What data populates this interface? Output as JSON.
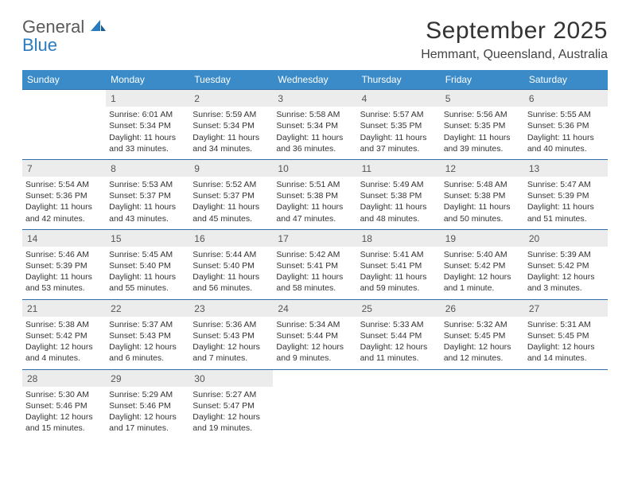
{
  "brand": {
    "line1": "General",
    "line2": "Blue"
  },
  "title": "September 2025",
  "location": "Hemmant, Queensland, Australia",
  "colors": {
    "header_bg": "#3b8bc8",
    "header_text": "#ffffff",
    "daynum_bg": "#ececec",
    "rule": "#2f6fa7",
    "text": "#333333",
    "brand_gray": "#5a5a5a",
    "brand_blue": "#2b7bbf"
  },
  "typography": {
    "title_fontsize": 30,
    "location_fontsize": 16,
    "header_fontsize": 12,
    "cell_fontsize": 10.5
  },
  "day_headers": [
    "Sunday",
    "Monday",
    "Tuesday",
    "Wednesday",
    "Thursday",
    "Friday",
    "Saturday"
  ],
  "weeks": [
    [
      null,
      {
        "n": "1",
        "sunrise": "6:01 AM",
        "sunset": "5:34 PM",
        "daylight": "11 hours and 33 minutes."
      },
      {
        "n": "2",
        "sunrise": "5:59 AM",
        "sunset": "5:34 PM",
        "daylight": "11 hours and 34 minutes."
      },
      {
        "n": "3",
        "sunrise": "5:58 AM",
        "sunset": "5:34 PM",
        "daylight": "11 hours and 36 minutes."
      },
      {
        "n": "4",
        "sunrise": "5:57 AM",
        "sunset": "5:35 PM",
        "daylight": "11 hours and 37 minutes."
      },
      {
        "n": "5",
        "sunrise": "5:56 AM",
        "sunset": "5:35 PM",
        "daylight": "11 hours and 39 minutes."
      },
      {
        "n": "6",
        "sunrise": "5:55 AM",
        "sunset": "5:36 PM",
        "daylight": "11 hours and 40 minutes."
      }
    ],
    [
      {
        "n": "7",
        "sunrise": "5:54 AM",
        "sunset": "5:36 PM",
        "daylight": "11 hours and 42 minutes."
      },
      {
        "n": "8",
        "sunrise": "5:53 AM",
        "sunset": "5:37 PM",
        "daylight": "11 hours and 43 minutes."
      },
      {
        "n": "9",
        "sunrise": "5:52 AM",
        "sunset": "5:37 PM",
        "daylight": "11 hours and 45 minutes."
      },
      {
        "n": "10",
        "sunrise": "5:51 AM",
        "sunset": "5:38 PM",
        "daylight": "11 hours and 47 minutes."
      },
      {
        "n": "11",
        "sunrise": "5:49 AM",
        "sunset": "5:38 PM",
        "daylight": "11 hours and 48 minutes."
      },
      {
        "n": "12",
        "sunrise": "5:48 AM",
        "sunset": "5:38 PM",
        "daylight": "11 hours and 50 minutes."
      },
      {
        "n": "13",
        "sunrise": "5:47 AM",
        "sunset": "5:39 PM",
        "daylight": "11 hours and 51 minutes."
      }
    ],
    [
      {
        "n": "14",
        "sunrise": "5:46 AM",
        "sunset": "5:39 PM",
        "daylight": "11 hours and 53 minutes."
      },
      {
        "n": "15",
        "sunrise": "5:45 AM",
        "sunset": "5:40 PM",
        "daylight": "11 hours and 55 minutes."
      },
      {
        "n": "16",
        "sunrise": "5:44 AM",
        "sunset": "5:40 PM",
        "daylight": "11 hours and 56 minutes."
      },
      {
        "n": "17",
        "sunrise": "5:42 AM",
        "sunset": "5:41 PM",
        "daylight": "11 hours and 58 minutes."
      },
      {
        "n": "18",
        "sunrise": "5:41 AM",
        "sunset": "5:41 PM",
        "daylight": "11 hours and 59 minutes."
      },
      {
        "n": "19",
        "sunrise": "5:40 AM",
        "sunset": "5:42 PM",
        "daylight": "12 hours and 1 minute."
      },
      {
        "n": "20",
        "sunrise": "5:39 AM",
        "sunset": "5:42 PM",
        "daylight": "12 hours and 3 minutes."
      }
    ],
    [
      {
        "n": "21",
        "sunrise": "5:38 AM",
        "sunset": "5:42 PM",
        "daylight": "12 hours and 4 minutes."
      },
      {
        "n": "22",
        "sunrise": "5:37 AM",
        "sunset": "5:43 PM",
        "daylight": "12 hours and 6 minutes."
      },
      {
        "n": "23",
        "sunrise": "5:36 AM",
        "sunset": "5:43 PM",
        "daylight": "12 hours and 7 minutes."
      },
      {
        "n": "24",
        "sunrise": "5:34 AM",
        "sunset": "5:44 PM",
        "daylight": "12 hours and 9 minutes."
      },
      {
        "n": "25",
        "sunrise": "5:33 AM",
        "sunset": "5:44 PM",
        "daylight": "12 hours and 11 minutes."
      },
      {
        "n": "26",
        "sunrise": "5:32 AM",
        "sunset": "5:45 PM",
        "daylight": "12 hours and 12 minutes."
      },
      {
        "n": "27",
        "sunrise": "5:31 AM",
        "sunset": "5:45 PM",
        "daylight": "12 hours and 14 minutes."
      }
    ],
    [
      {
        "n": "28",
        "sunrise": "5:30 AM",
        "sunset": "5:46 PM",
        "daylight": "12 hours and 15 minutes."
      },
      {
        "n": "29",
        "sunrise": "5:29 AM",
        "sunset": "5:46 PM",
        "daylight": "12 hours and 17 minutes."
      },
      {
        "n": "30",
        "sunrise": "5:27 AM",
        "sunset": "5:47 PM",
        "daylight": "12 hours and 19 minutes."
      },
      null,
      null,
      null,
      null
    ]
  ],
  "labels": {
    "sunrise": "Sunrise:",
    "sunset": "Sunset:",
    "daylight": "Daylight:"
  }
}
